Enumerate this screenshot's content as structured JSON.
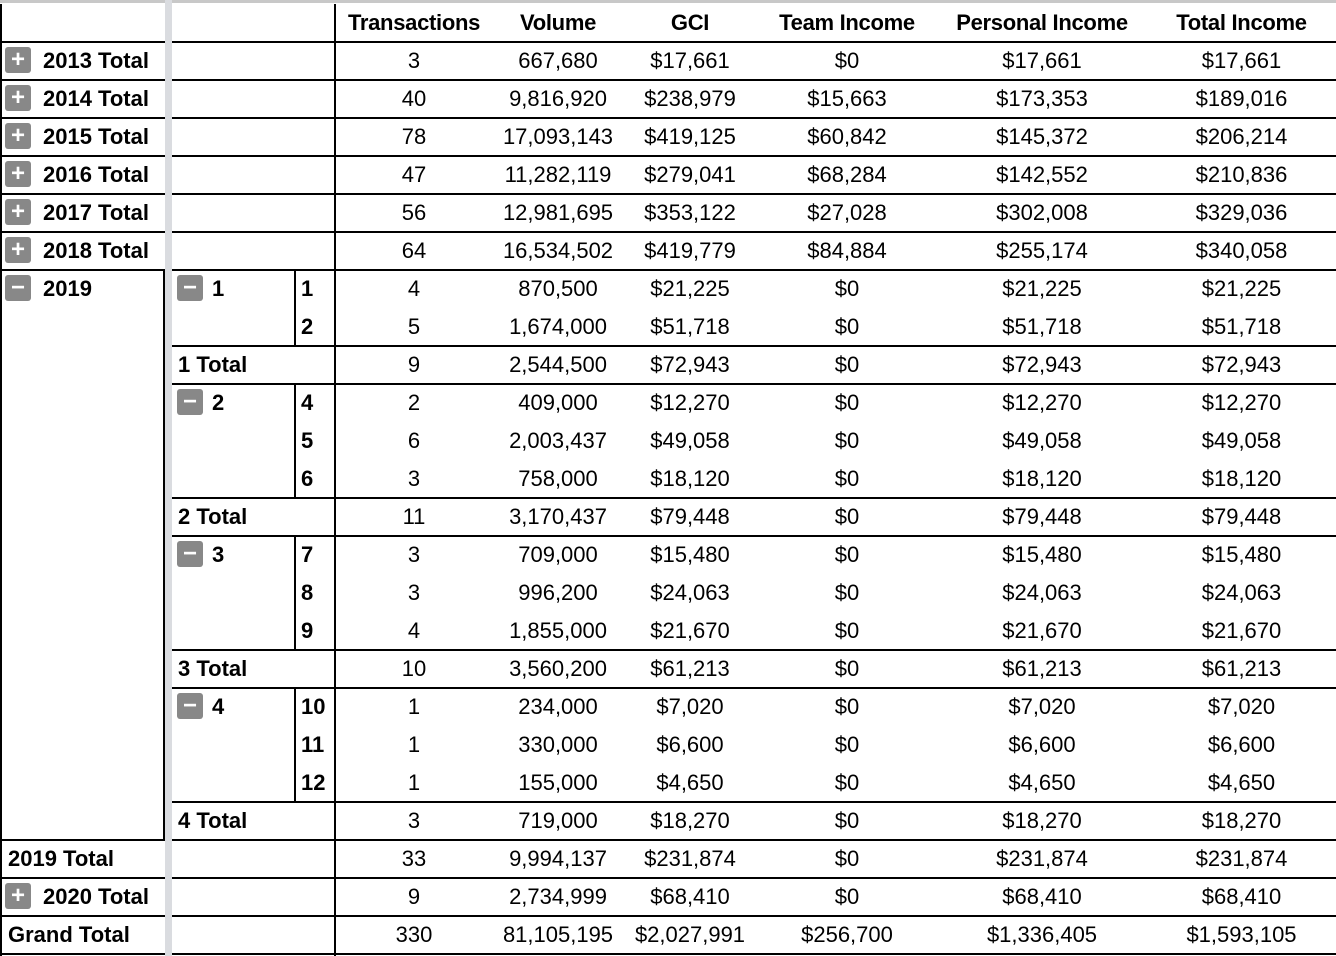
{
  "header": {
    "columns": [
      "Transactions",
      "Volume",
      "GCI",
      "Team Income",
      "Personal Income",
      "Total Income"
    ]
  },
  "icons": {
    "expand": "plus-icon",
    "collapse": "minus-icon"
  },
  "colors": {
    "expander_bg": "#888888",
    "frozen_separator": "#dadce0"
  },
  "rows": [
    {
      "type": "year_total",
      "a": "2013 Total",
      "expander": "plus",
      "values": [
        "3",
        "667,680",
        "$17,661",
        "$0",
        "$17,661",
        "$17,661"
      ]
    },
    {
      "type": "year_total",
      "a": "2014 Total",
      "expander": "plus",
      "values": [
        "40",
        "9,816,920",
        "$238,979",
        "$15,663",
        "$173,353",
        "$189,016"
      ]
    },
    {
      "type": "year_total",
      "a": "2015 Total",
      "expander": "plus",
      "values": [
        "78",
        "17,093,143",
        "$419,125",
        "$60,842",
        "$145,372",
        "$206,214"
      ]
    },
    {
      "type": "year_total",
      "a": "2016 Total",
      "expander": "plus",
      "values": [
        "47",
        "11,282,119",
        "$279,041",
        "$68,284",
        "$142,552",
        "$210,836"
      ]
    },
    {
      "type": "year_total",
      "a": "2017 Total",
      "expander": "plus",
      "values": [
        "56",
        "12,981,695",
        "$353,122",
        "$27,028",
        "$302,008",
        "$329,036"
      ]
    },
    {
      "type": "year_total",
      "a": "2018 Total",
      "expander": "plus",
      "values": [
        "64",
        "16,534,502",
        "$419,779",
        "$84,884",
        "$255,174",
        "$340,058"
      ]
    },
    {
      "type": "month",
      "a": "2019",
      "b": "1",
      "c": "1",
      "values": [
        "4",
        "870,500",
        "$21,225",
        "$0",
        "$21,225",
        "$21,225"
      ]
    },
    {
      "type": "month",
      "c": "2",
      "values": [
        "5",
        "1,674,000",
        "$51,718",
        "$0",
        "$51,718",
        "$51,718"
      ]
    },
    {
      "type": "quarter_total",
      "b": "1 Total",
      "values": [
        "9",
        "2,544,500",
        "$72,943",
        "$0",
        "$72,943",
        "$72,943"
      ]
    },
    {
      "type": "month",
      "b": "2",
      "c": "4",
      "values": [
        "2",
        "409,000",
        "$12,270",
        "$0",
        "$12,270",
        "$12,270"
      ]
    },
    {
      "type": "month",
      "c": "5",
      "values": [
        "6",
        "2,003,437",
        "$49,058",
        "$0",
        "$49,058",
        "$49,058"
      ]
    },
    {
      "type": "month",
      "c": "6",
      "values": [
        "3",
        "758,000",
        "$18,120",
        "$0",
        "$18,120",
        "$18,120"
      ]
    },
    {
      "type": "quarter_total",
      "b": "2 Total",
      "values": [
        "11",
        "3,170,437",
        "$79,448",
        "$0",
        "$79,448",
        "$79,448"
      ]
    },
    {
      "type": "month",
      "b": "3",
      "c": "7",
      "values": [
        "3",
        "709,000",
        "$15,480",
        "$0",
        "$15,480",
        "$15,480"
      ]
    },
    {
      "type": "month",
      "c": "8",
      "values": [
        "3",
        "996,200",
        "$24,063",
        "$0",
        "$24,063",
        "$24,063"
      ]
    },
    {
      "type": "month",
      "c": "9",
      "values": [
        "4",
        "1,855,000",
        "$21,670",
        "$0",
        "$21,670",
        "$21,670"
      ]
    },
    {
      "type": "quarter_total",
      "b": "3 Total",
      "values": [
        "10",
        "3,560,200",
        "$61,213",
        "$0",
        "$61,213",
        "$61,213"
      ]
    },
    {
      "type": "month",
      "b": "4",
      "c": "10",
      "values": [
        "1",
        "234,000",
        "$7,020",
        "$0",
        "$7,020",
        "$7,020"
      ]
    },
    {
      "type": "month",
      "c": "11",
      "values": [
        "1",
        "330,000",
        "$6,600",
        "$0",
        "$6,600",
        "$6,600"
      ]
    },
    {
      "type": "month",
      "c": "12",
      "values": [
        "1",
        "155,000",
        "$4,650",
        "$0",
        "$4,650",
        "$4,650"
      ]
    },
    {
      "type": "quarter_total",
      "b": "4 Total",
      "values": [
        "3",
        "719,000",
        "$18,270",
        "$0",
        "$18,270",
        "$18,270"
      ]
    },
    {
      "type": "year_total",
      "a": "2019 Total",
      "values": [
        "33",
        "9,994,137",
        "$231,874",
        "$0",
        "$231,874",
        "$231,874"
      ]
    },
    {
      "type": "year_total",
      "a": "2020 Total",
      "expander": "plus",
      "values": [
        "9",
        "2,734,999",
        "$68,410",
        "$0",
        "$68,410",
        "$68,410"
      ]
    },
    {
      "type": "grand_total",
      "a": "Grand Total",
      "values": [
        "330",
        "81,105,195",
        "$2,027,991",
        "$256,700",
        "$1,336,405",
        "$1,593,105"
      ]
    }
  ]
}
